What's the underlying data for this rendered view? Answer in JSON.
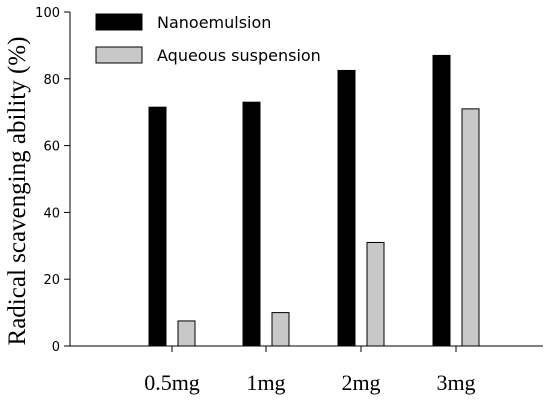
{
  "chart_data": {
    "type": "bar",
    "title": "",
    "xlabel": "",
    "ylabel": "Radical scavenging ability (%)",
    "categories": [
      "0.5mg",
      "1mg",
      "2mg",
      "3mg"
    ],
    "series": [
      {
        "name": "Nanoemulsion",
        "values": [
          71.5,
          73,
          82.5,
          87
        ],
        "color": "#000000"
      },
      {
        "name": "Aqueous suspension",
        "values": [
          7.5,
          10,
          31,
          71
        ],
        "color": "#c8c8c8"
      }
    ],
    "ylim": [
      0,
      100
    ],
    "yticks": [
      0,
      20,
      40,
      60,
      80,
      100
    ],
    "grid": false,
    "legend_position": "top-left"
  }
}
